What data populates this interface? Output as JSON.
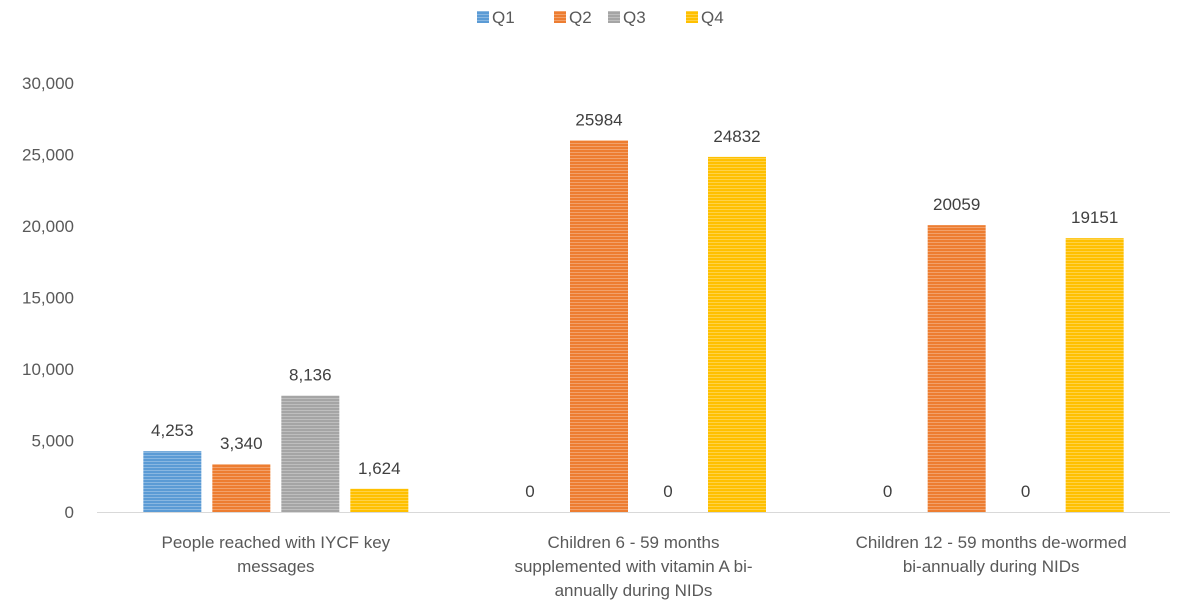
{
  "chart_data": {
    "type": "bar",
    "title": "",
    "xlabel": "",
    "ylabel": "",
    "ylim": [
      0,
      30000
    ],
    "yticks": [
      "0",
      "5,000",
      "10,000",
      "15,000",
      "20,000",
      "25,000",
      "30,000"
    ],
    "grid": false,
    "legend_position": "top-center",
    "categories": [
      [
        "People reached with IYCF key",
        "messages"
      ],
      [
        "Children 6 - 59 months",
        "supplemented with vitamin A bi-",
        "annually during NIDs"
      ],
      [
        "Children 12 - 59 months de-wormed",
        "bi-annually during NIDs"
      ]
    ],
    "series": [
      {
        "name": "Q1",
        "color": "#5b9bd5",
        "values": [
          4253,
          0,
          0
        ],
        "labels": [
          "4,253",
          "0",
          "0"
        ]
      },
      {
        "name": "Q2",
        "color": "#ed7d31",
        "values": [
          3340,
          25984,
          20059
        ],
        "labels": [
          "3,340",
          "25984",
          "20059"
        ]
      },
      {
        "name": "Q3",
        "color": "#a5a5a5",
        "values": [
          8136,
          0,
          0
        ],
        "labels": [
          "8,136",
          "0",
          "0"
        ]
      },
      {
        "name": "Q4",
        "color": "#ffc000",
        "values": [
          1624,
          24832,
          19151
        ],
        "labels": [
          "1,624",
          "24832",
          "19151"
        ]
      }
    ]
  }
}
